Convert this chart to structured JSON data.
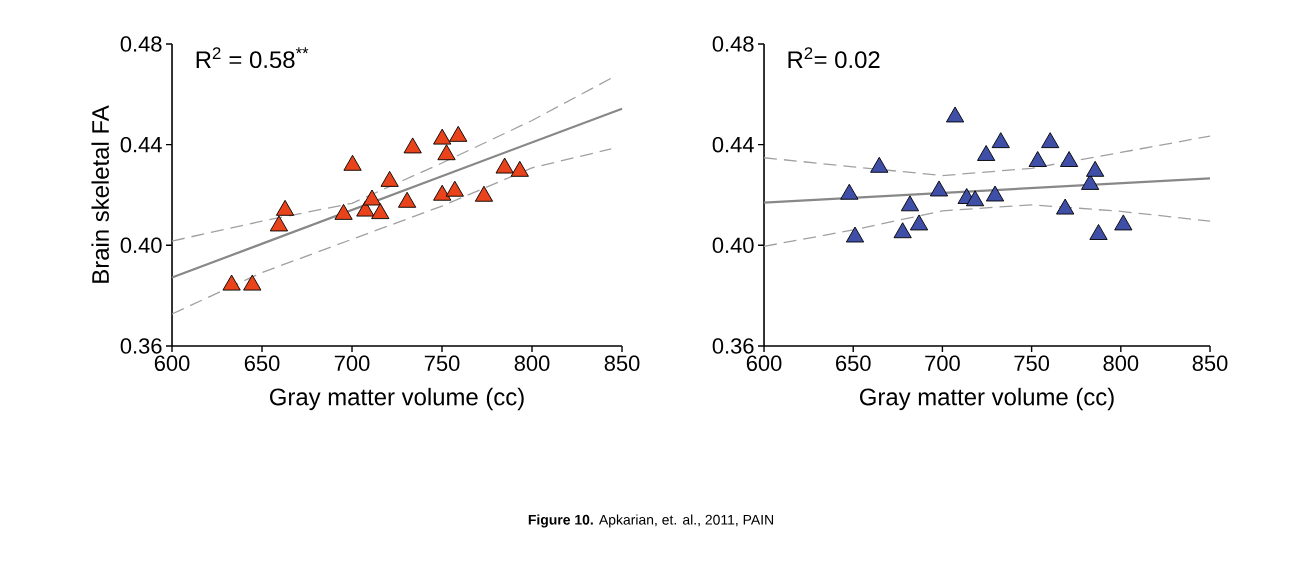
{
  "chart_data": [
    {
      "type": "scatter",
      "xlabel": "Gray matter volume (cc)",
      "ylabel": "Brain skeletal FA",
      "xlim": [
        600,
        850
      ],
      "ylim": [
        0.36,
        0.48
      ],
      "xticks": [
        600,
        650,
        700,
        750,
        800,
        850
      ],
      "yticks": [
        0.36,
        {
          "value": 0.4,
          "label": "0.40"
        },
        0.44,
        0.48
      ],
      "annotations": [
        "R$^{2}$ = 0.58$^{**}$",
        "**Figure 10.** Apkarian, et. al., 2011, PAIN"
      ],
      "series": [
        {
          "marker": "triangle",
          "color": "#e8431a",
          "x": [
            633.1,
            644.6,
            659.4,
            662.8,
            695.3,
            700.3,
            707.4,
            711.1,
            715.7,
            720.9,
            730.6,
            733.7,
            750.1,
            750.1,
            752.5,
            757.1,
            759.0,
            773.3,
            784.8,
            793.2
          ],
          "values": [
            0.3842,
            0.3842,
            0.4077,
            0.4139,
            0.4123,
            0.4318,
            0.4136,
            0.418,
            0.4126,
            0.4254,
            0.4171,
            0.4387,
            0.4422,
            0.4199,
            0.436,
            0.4215,
            0.4433,
            0.4195,
            0.4307,
            0.4294
          ]
        },
        {
          "type": "line",
          "color": "#888888",
          "line_style": "solid",
          "x": [
            600,
            850
          ],
          "values": [
            0.3872,
            0.4543
          ]
        },
        {
          "type": "line",
          "color": "#a0a0a0",
          "line_style": "dashed",
          "x": [
            600,
            650,
            700,
            750,
            800,
            844
          ],
          "values": [
            0.4017,
            0.4096,
            0.4167,
            0.4327,
            0.4496,
            0.4664
          ]
        },
        {
          "type": "line",
          "color": "#a0a0a0",
          "line_style": "dashed",
          "x": [
            600,
            650,
            700,
            750,
            800,
            844
          ],
          "values": [
            0.3727,
            0.3892,
            0.4024,
            0.4156,
            0.4308,
            0.4383
          ]
        }
      ]
    },
    {
      "type": "scatter",
      "xlabel": "Gray matter volume (cc)",
      "xlim": [
        600,
        850
      ],
      "ylim": [
        0.36,
        0.48
      ],
      "xticks": [
        600,
        650,
        700,
        750,
        800,
        850
      ],
      "yticks": [
        0.36,
        {
          "value": 0.4,
          "label": "0.40"
        },
        0.44,
        0.48
      ],
      "annotations": [
        "R$^{2}$= 0.02"
      ],
      "series": [
        {
          "marker": "triangle",
          "color": "#3f4fa8",
          "x": [
            647.8,
            651.0,
            664.6,
            677.7,
            681.8,
            686.9,
            698.1,
            707.1,
            713.6,
            718.3,
            724.5,
            729.5,
            732.7,
            753.4,
            760.4,
            771.0,
            768.8,
            782.8,
            785.6,
            787.5,
            801.4
          ],
          "values": [
            0.4203,
            0.4033,
            0.431,
            0.405,
            0.4157,
            0.4081,
            0.4216,
            0.451,
            0.4186,
            0.4177,
            0.4357,
            0.4196,
            0.4408,
            0.4333,
            0.4408,
            0.4333,
            0.4144,
            0.4242,
            0.4294,
            0.4043,
            0.4081
          ]
        },
        {
          "type": "line",
          "color": "#888888",
          "line_style": "solid",
          "x": [
            600,
            850
          ],
          "values": [
            0.417,
            0.4266
          ]
        },
        {
          "type": "line",
          "color": "#a0a0a0",
          "line_style": "dashed",
          "x": [
            600,
            650,
            700,
            750,
            800,
            850
          ],
          "values": [
            0.4348,
            0.4312,
            0.4277,
            0.4306,
            0.4369,
            0.4434
          ]
        },
        {
          "type": "line",
          "color": "#a0a0a0",
          "line_style": "dashed",
          "x": [
            600,
            650,
            700,
            750,
            800,
            850
          ],
          "values": [
            0.3996,
            0.4061,
            0.4137,
            0.4161,
            0.4135,
            0.4096
          ]
        }
      ]
    }
  ]
}
